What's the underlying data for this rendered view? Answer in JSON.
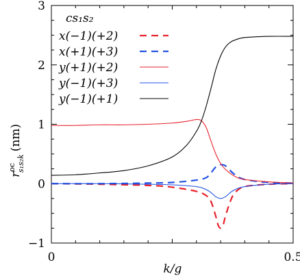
{
  "chart_data": {
    "type": "line",
    "xlabel": "k/g",
    "ylabel": "r^{oc}_{s1 s2 k} (nm)",
    "ylabel_main": "r",
    "ylabel_sup": "oc",
    "ylabel_sub": "s₁s₂k",
    "ylabel_unit": "(nm)",
    "xlim": [
      0,
      0.5
    ],
    "ylim": [
      -1,
      3
    ],
    "x_ticks": [
      0,
      0.5
    ],
    "x_tick_labels": [
      "0",
      "0.5"
    ],
    "y_ticks": [
      -1,
      0,
      1,
      2,
      3
    ],
    "y_tick_labels": [
      "−1",
      "0",
      "1",
      "2",
      "3"
    ],
    "legend_title": "cs₁s₂",
    "legend_position": "top-left",
    "grid": false,
    "series": [
      {
        "name": "x(−1)(+2)",
        "color": "#e8202a",
        "style": "dashed",
        "x": [
          0,
          0.1,
          0.2,
          0.25,
          0.3,
          0.32,
          0.33,
          0.34,
          0.345,
          0.35,
          0.355,
          0.36,
          0.37,
          0.38,
          0.4,
          0.45,
          0.5
        ],
        "y": [
          0,
          -0.01,
          -0.03,
          -0.06,
          -0.13,
          -0.2,
          -0.3,
          -0.55,
          -0.7,
          -0.75,
          -0.7,
          -0.55,
          -0.3,
          -0.15,
          -0.05,
          -0.01,
          0
        ]
      },
      {
        "name": "x(+1)(+3)",
        "color": "#2050e0",
        "style": "dashed",
        "x": [
          0,
          0.1,
          0.2,
          0.25,
          0.3,
          0.32,
          0.33,
          0.34,
          0.35,
          0.36,
          0.37,
          0.38,
          0.4,
          0.45,
          0.5
        ],
        "y": [
          0,
          0,
          0.01,
          0.02,
          0.06,
          0.1,
          0.18,
          0.28,
          0.32,
          0.3,
          0.22,
          0.15,
          0.07,
          0.02,
          0.01
        ]
      },
      {
        "name": "y(+1)(+2)",
        "color": "#e8202a",
        "style": "solid",
        "x": [
          0,
          0.05,
          0.1,
          0.15,
          0.2,
          0.25,
          0.28,
          0.3,
          0.31,
          0.32,
          0.33,
          0.34,
          0.35,
          0.36,
          0.38,
          0.4,
          0.45,
          0.5
        ],
        "y": [
          0.98,
          0.98,
          0.99,
          0.99,
          1.0,
          1.02,
          1.05,
          1.08,
          1.06,
          0.95,
          0.72,
          0.5,
          0.34,
          0.24,
          0.12,
          0.07,
          0.03,
          0.01
        ]
      },
      {
        "name": "y(−1)(+3)",
        "color": "#2050e0",
        "style": "solid",
        "x": [
          0,
          0.1,
          0.2,
          0.25,
          0.3,
          0.32,
          0.33,
          0.34,
          0.35,
          0.36,
          0.37,
          0.38,
          0.4,
          0.45,
          0.5
        ],
        "y": [
          0,
          0,
          -0.01,
          -0.02,
          -0.05,
          -0.1,
          -0.15,
          -0.22,
          -0.25,
          -0.22,
          -0.15,
          -0.1,
          -0.05,
          -0.01,
          0
        ]
      },
      {
        "name": "y(−1)(+1)",
        "color": "#000000",
        "style": "solid",
        "x": [
          0,
          0.05,
          0.1,
          0.15,
          0.2,
          0.25,
          0.28,
          0.3,
          0.31,
          0.32,
          0.33,
          0.34,
          0.35,
          0.36,
          0.37,
          0.38,
          0.4,
          0.45,
          0.5
        ],
        "y": [
          0.14,
          0.15,
          0.18,
          0.22,
          0.3,
          0.45,
          0.65,
          0.88,
          1.05,
          1.3,
          1.6,
          1.92,
          2.15,
          2.3,
          2.38,
          2.42,
          2.46,
          2.48,
          2.48
        ]
      }
    ]
  }
}
